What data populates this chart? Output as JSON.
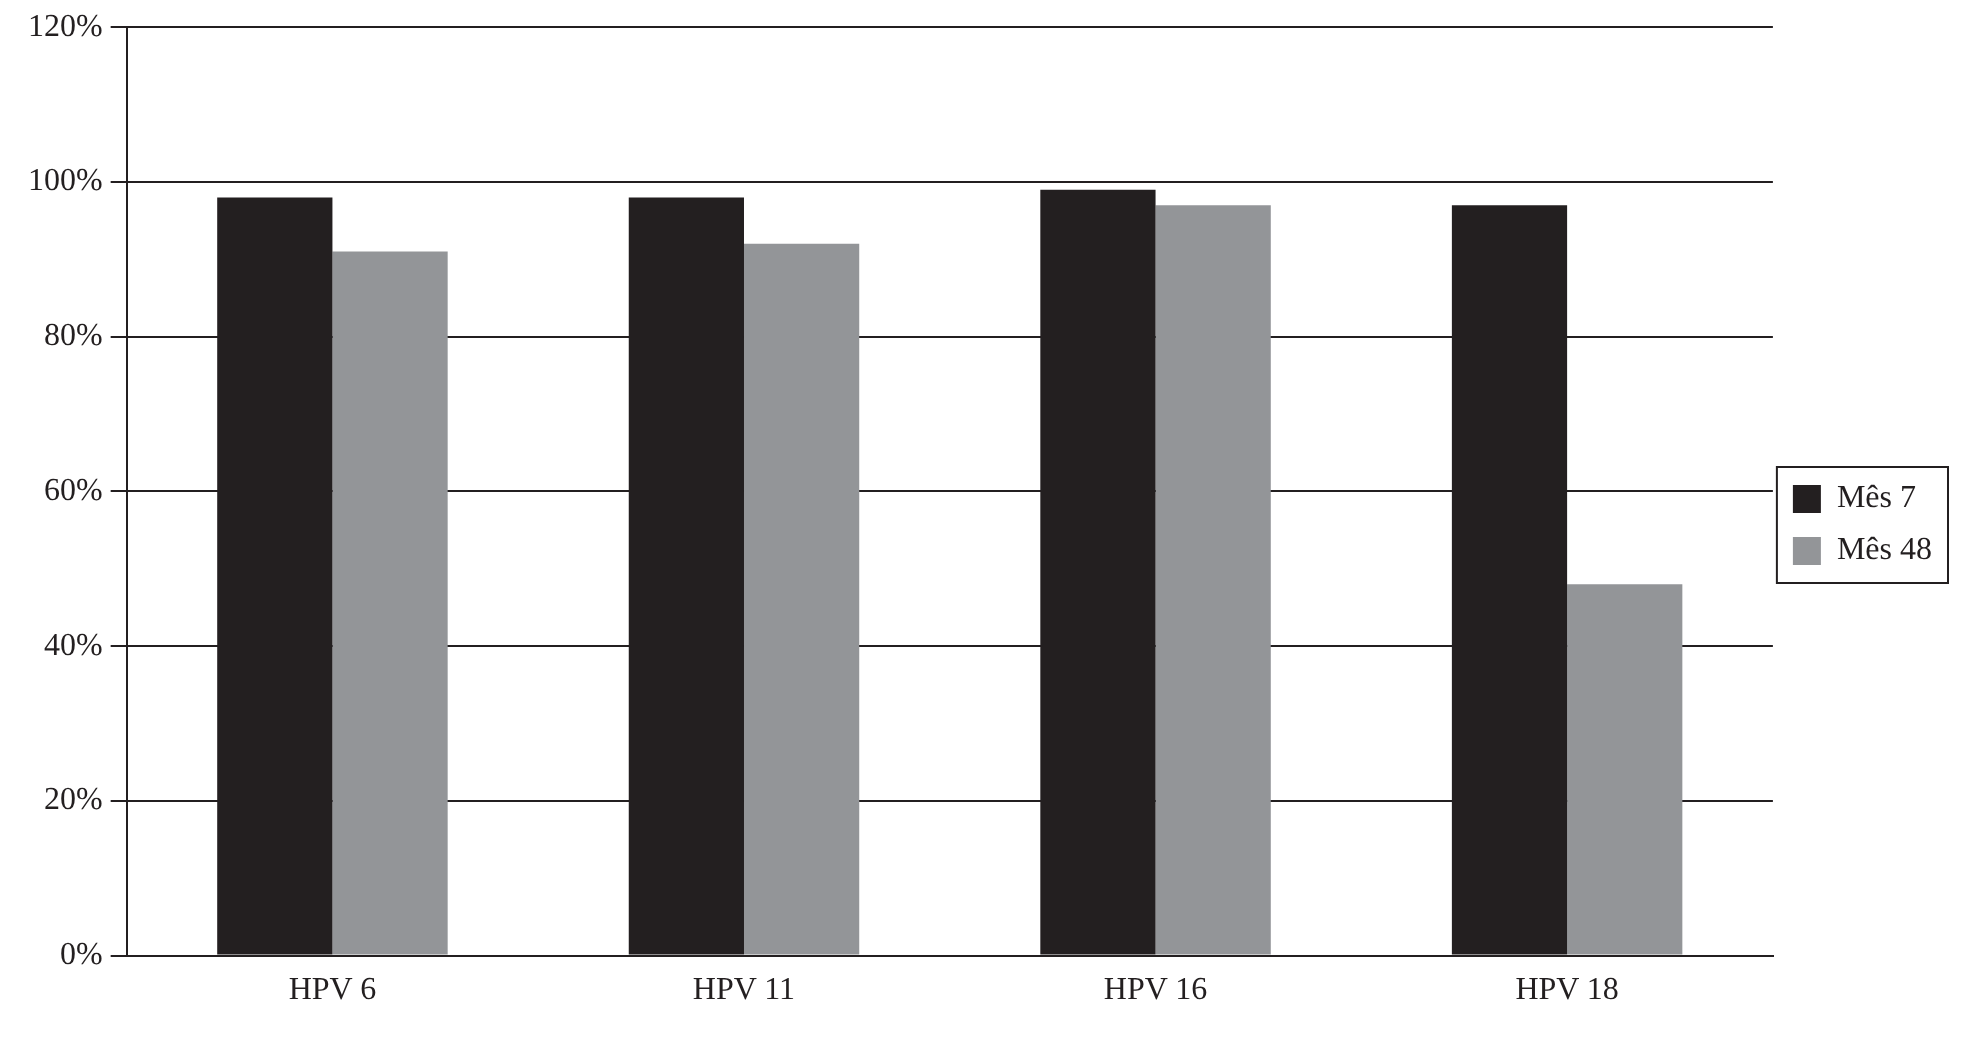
{
  "chart_data": {
    "type": "bar",
    "categories": [
      "HPV 6",
      "HPV 11",
      "HPV 16",
      "HPV 18"
    ],
    "series": [
      {
        "name": "Mês 7",
        "color": "#231f20",
        "values": [
          98,
          98,
          99,
          97
        ]
      },
      {
        "name": "Mês 48",
        "color": "#939598",
        "values": [
          91,
          92,
          97,
          48
        ]
      }
    ],
    "ylim": [
      0,
      120
    ],
    "yticks": [
      {
        "value": 0,
        "label": "0%"
      },
      {
        "value": 20,
        "label": "20%"
      },
      {
        "value": 40,
        "label": "40%"
      },
      {
        "value": 60,
        "label": "60%"
      },
      {
        "value": 80,
        "label": "80%"
      },
      {
        "value": 100,
        "label": "100%"
      },
      {
        "value": 120,
        "label": "120%"
      }
    ],
    "grid": "y",
    "legend": "right"
  }
}
